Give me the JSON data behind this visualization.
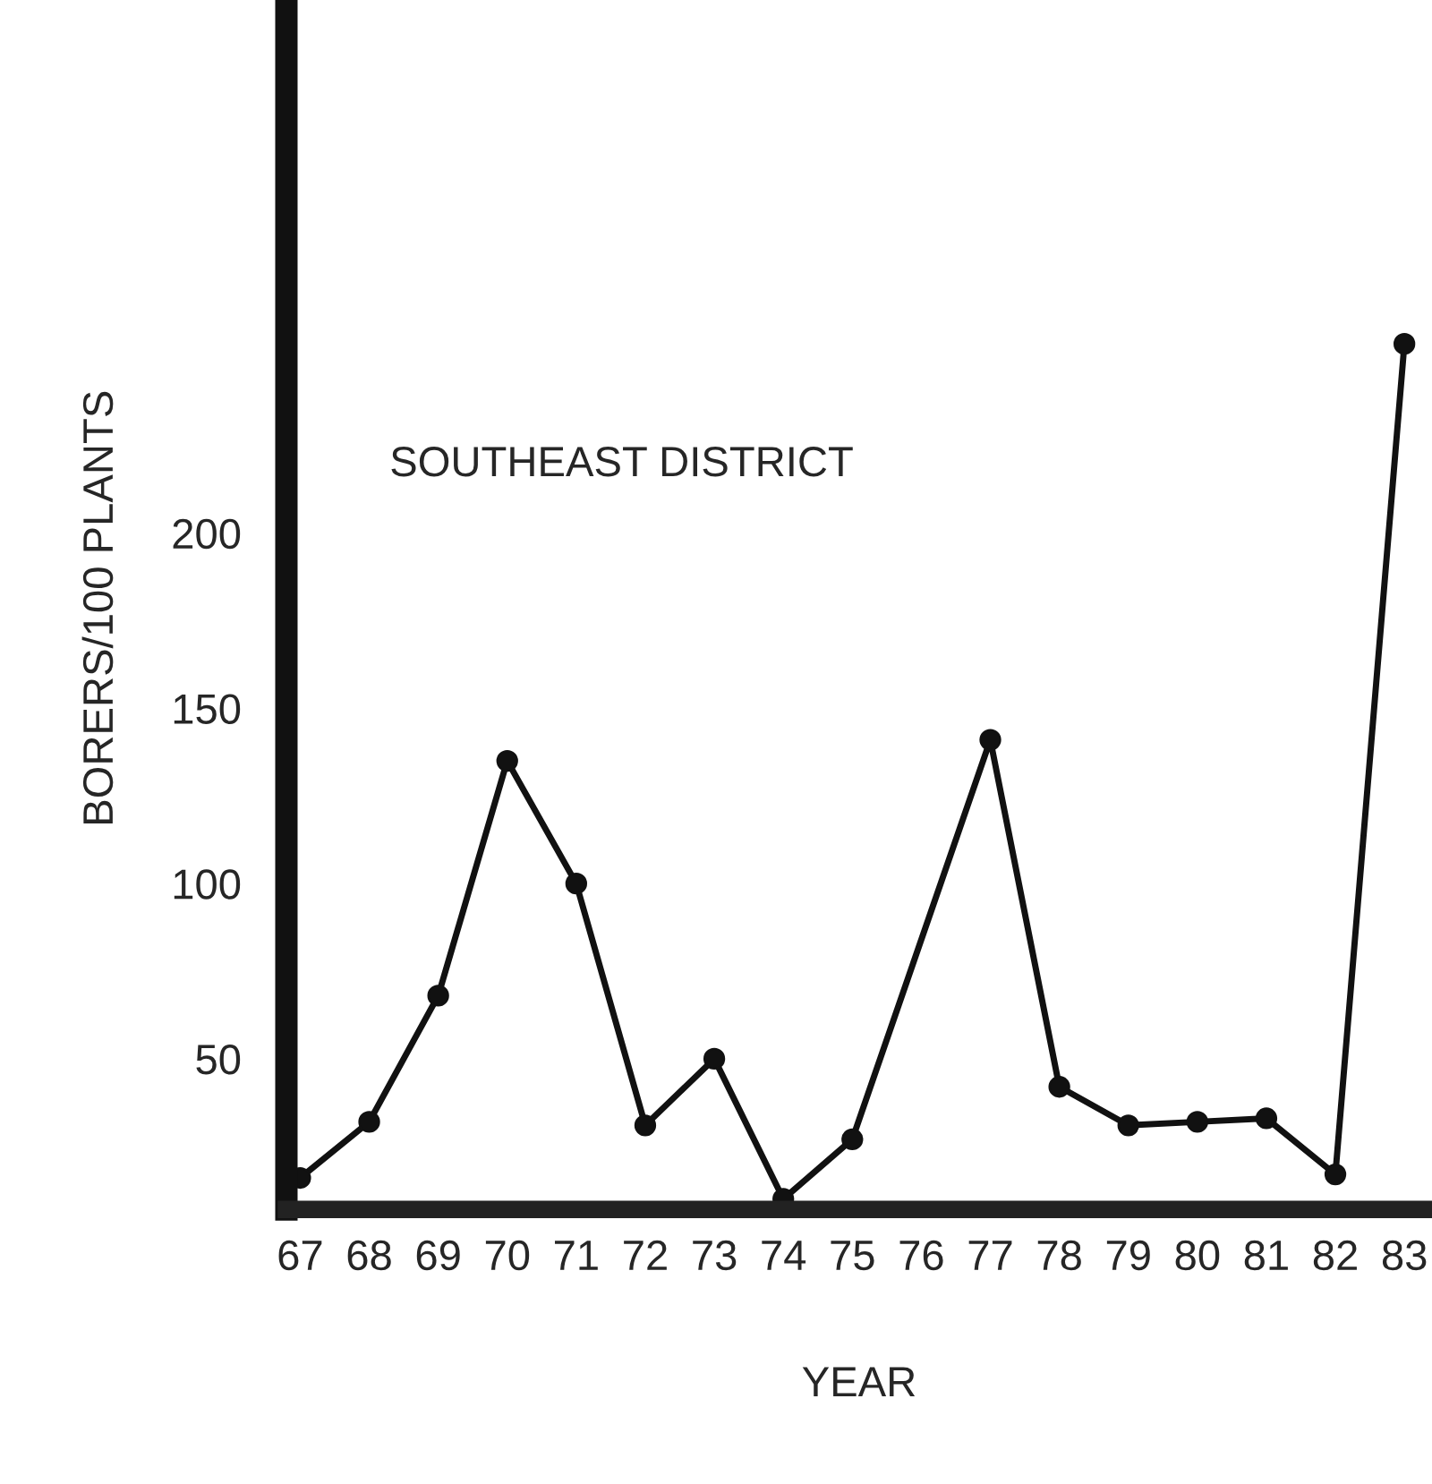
{
  "chart_data": {
    "type": "line",
    "title": "SOUTHEAST DISTRICT",
    "xlabel": "YEAR",
    "ylabel": "BORERS/100 PLANTS",
    "x": [
      67,
      68,
      69,
      70,
      71,
      72,
      73,
      74,
      75,
      77,
      78,
      79,
      80,
      81,
      82,
      83
    ],
    "series": [
      {
        "color": "#111111",
        "values": [
          16,
          32,
          68,
          135,
          100,
          31,
          50,
          10,
          27,
          141,
          42,
          31,
          32,
          33,
          17,
          254
        ]
      }
    ],
    "xlim": [
      66.8,
      83.4
    ],
    "ylim": [
      7,
      350
    ],
    "xticks": [
      67,
      68,
      69,
      70,
      71,
      72,
      73,
      74,
      75,
      76,
      77,
      78,
      79,
      80,
      81,
      82,
      83
    ],
    "yticks": [
      50,
      100,
      150,
      200
    ],
    "marker": "circle",
    "line_style": "solid",
    "grid": false,
    "legend": false
  }
}
